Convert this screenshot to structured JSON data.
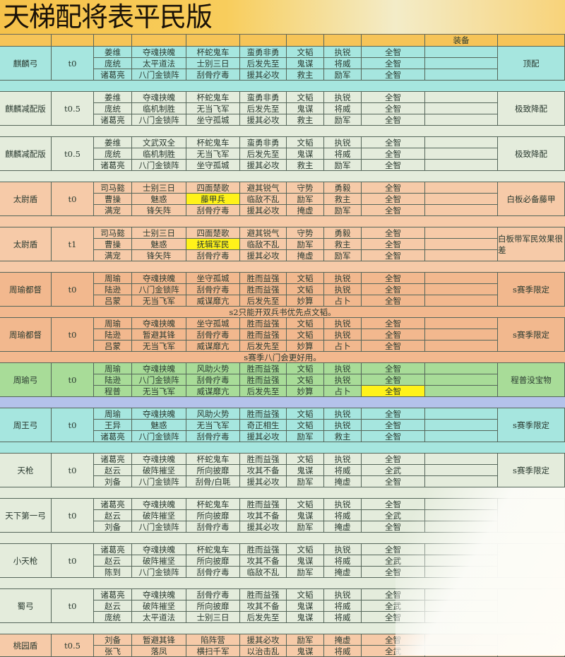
{
  "title": "天梯配将表平民版",
  "header": {
    "equipment": "装备"
  },
  "colors": {
    "cyan": "#a6e6df",
    "light": "#e4ecdc",
    "peach": "#f6caa8",
    "orange": "#f2b88e",
    "green": "#a8dc98",
    "blue": "#b4c2ea",
    "highlight": "#fff21a"
  },
  "groups": [
    {
      "name": "麒麟弓",
      "tier": "t0",
      "color": "cyan",
      "note": "顶配",
      "after": "",
      "rows": [
        [
          "姜维",
          "夺魂挟魄",
          "杯蛇鬼车",
          "蛮勇非勇",
          "文韬",
          "执锐",
          "全智"
        ],
        [
          "庞统",
          "太平道法",
          "士别三日",
          "后发先至",
          "鬼谋",
          "将威",
          "全智"
        ],
        [
          "诸葛亮",
          "八门金锁阵",
          "刮骨疗毒",
          "援其必攻",
          "救主",
          "励军",
          "全智"
        ]
      ]
    },
    {
      "name": "麒麟减配版",
      "tier": "t0.5",
      "color": "light",
      "note": "极致降配",
      "after": "",
      "rows": [
        [
          "姜维",
          "夺魂挟魄",
          "杯蛇鬼车",
          "蛮勇非勇",
          "文韬",
          "执锐",
          "全智"
        ],
        [
          "庞统",
          "临机制胜",
          "无当飞军",
          "后发先至",
          "鬼谋",
          "将威",
          "全智"
        ],
        [
          "诸葛亮",
          "八门金锁阵",
          "坐守孤城",
          "援其必攻",
          "救主",
          "励军",
          "全智"
        ]
      ]
    },
    {
      "name": "麒麟减配版",
      "tier": "t0.5",
      "color": "light",
      "note": "极致降配",
      "after": "",
      "rows": [
        [
          "姜维",
          "文武双全",
          "杯蛇鬼车",
          "蛮勇非勇",
          "文韬",
          "执锐",
          "全智"
        ],
        [
          "庞统",
          "临机制胜",
          "无当飞军",
          "后发先至",
          "鬼谋",
          "将威",
          "全智"
        ],
        [
          "诸葛亮",
          "八门金锁阵",
          "坐守孤城",
          "援其必攻",
          "救主",
          "励军",
          "全智"
        ]
      ]
    },
    {
      "name": "太尉盾",
      "tier": "t0",
      "color": "peach",
      "note": "白板必备藤甲",
      "after": "",
      "highlight": [
        1,
        2
      ],
      "rows": [
        [
          "司马懿",
          "士别三日",
          "四面楚歌",
          "避其锐气",
          "守势",
          "勇毅",
          "全智"
        ],
        [
          "曹操",
          "魅惑",
          "藤甲兵",
          "临敌不乱",
          "励军",
          "救主",
          "全智"
        ],
        [
          "满宠",
          "锋矢阵",
          "刮骨疗毒",
          "援其必攻",
          "掩虚",
          "励军",
          "全智"
        ]
      ]
    },
    {
      "name": "太尉盾",
      "tier": "t1",
      "color": "peach",
      "note": "白板带军民效果很差",
      "after": "",
      "highlight": [
        1,
        2
      ],
      "rows": [
        [
          "司马懿",
          "士别三日",
          "四面楚歌",
          "避其锐气",
          "守势",
          "勇毅",
          "全智"
        ],
        [
          "曹操",
          "魅惑",
          "抚辑军民",
          "临敌不乱",
          "励军",
          "救主",
          "全智"
        ],
        [
          "满宠",
          "锋矢阵",
          "刮骨疗毒",
          "援其必攻",
          "掩虚",
          "励军",
          "全智"
        ]
      ]
    },
    {
      "name": "周瑜都督",
      "tier": "t0",
      "color": "orange",
      "note": "s赛季限定",
      "after": "s2只能开双兵书优先点文韬。",
      "rows": [
        [
          "周瑜",
          "夺魂挟魄",
          "坐守孤城",
          "胜而益强",
          "文韬",
          "执锐",
          "全智"
        ],
        [
          "陆逊",
          "八门金锁阵",
          "刮骨疗毒",
          "胜而益强",
          "文韬",
          "执锐",
          "全智"
        ],
        [
          "吕蒙",
          "无当飞军",
          "威谋靡亢",
          "后发先至",
          "妙算",
          "占卜",
          "全智"
        ]
      ]
    },
    {
      "name": "周瑜都督",
      "tier": "t0",
      "color": "orange",
      "note": "s赛季限定",
      "after": "s赛季八门会更好用。",
      "rows": [
        [
          "周瑜",
          "夺魂挟魄",
          "坐守孤城",
          "胜而益强",
          "文韬",
          "执锐",
          "全智"
        ],
        [
          "陆逊",
          "暂避其锋",
          "刮骨疗毒",
          "胜而益强",
          "文韬",
          "执锐",
          "全智"
        ],
        [
          "吕蒙",
          "无当飞军",
          "威谋靡亢",
          "后发先至",
          "妙算",
          "占卜",
          "全智"
        ]
      ]
    },
    {
      "name": "周瑜弓",
      "tier": "t0",
      "color": "green",
      "note": "程普没宝物",
      "after": "",
      "sepColor": "blue",
      "highlight": [
        2,
        6
      ],
      "rows": [
        [
          "周瑜",
          "夺魂挟魄",
          "风助火势",
          "胜而益强",
          "文韬",
          "执锐",
          "全智"
        ],
        [
          "陆逊",
          "八门金锁阵",
          "刮骨疗毒",
          "胜而益强",
          "文韬",
          "执锐",
          "全智"
        ],
        [
          "程普",
          "无当飞军",
          "威谋靡亢",
          "后发先至",
          "妙算",
          "占卜",
          "全智"
        ]
      ]
    },
    {
      "name": "周王弓",
      "tier": "t0",
      "color": "cyan",
      "note": "s赛季限定",
      "after": "",
      "rows": [
        [
          "周瑜",
          "夺魂挟魄",
          "风助火势",
          "胜而益强",
          "文韬",
          "执锐",
          "全智"
        ],
        [
          "王异",
          "魅惑",
          "无当飞军",
          "奇正相生",
          "文韬",
          "执锐",
          "全智"
        ],
        [
          "诸葛亮",
          "八门金锁阵",
          "刮骨疗毒",
          "援其必攻",
          "励军",
          "救主",
          "全智"
        ]
      ]
    },
    {
      "name": "天枪",
      "tier": "t0",
      "color": "light",
      "note": "s赛季限定",
      "after": "",
      "rows": [
        [
          "诸葛亮",
          "夺魂挟魄",
          "杯蛇鬼车",
          "胜而益强",
          "文韬",
          "执锐",
          "全智"
        ],
        [
          "赵云",
          "破阵摧坚",
          "所向披靡",
          "攻其不备",
          "鬼谋",
          "将威",
          "全武"
        ],
        [
          "刘备",
          "八门金锁阵",
          "刮骨/白毦",
          "援其必攻",
          "励军",
          "掩虚",
          "全智"
        ]
      ]
    },
    {
      "name": "天下第一弓",
      "tier": "t0",
      "color": "light",
      "note": "",
      "after": "",
      "rows": [
        [
          "诸葛亮",
          "夺魂挟魄",
          "杯蛇鬼车",
          "胜而益强",
          "文韬",
          "执锐",
          "全智"
        ],
        [
          "赵云",
          "破阵摧坚",
          "所向披靡",
          "攻其不备",
          "鬼谋",
          "将威",
          "全武"
        ],
        [
          "刘备",
          "八门金锁阵",
          "刮骨疗毒",
          "援其必攻",
          "励军",
          "掩虚",
          "全智"
        ]
      ]
    },
    {
      "name": "小天枪",
      "tier": "t0",
      "color": "light",
      "note": "",
      "after": "",
      "rows": [
        [
          "诸葛亮",
          "夺魂挟魄",
          "杯蛇鬼车",
          "胜而益强",
          "文韬",
          "执锐",
          "全智"
        ],
        [
          "赵云",
          "破阵摧坚",
          "所向披靡",
          "攻其不备",
          "鬼谋",
          "将威",
          "全武"
        ],
        [
          "陈到",
          "八门金锁阵",
          "刮骨疗毒",
          "临敌不乱",
          "励军",
          "掩虚",
          "全智"
        ]
      ]
    },
    {
      "name": "蜀弓",
      "tier": "t0",
      "color": "light",
      "note": "",
      "after": "",
      "rows": [
        [
          "诸葛亮",
          "夺魂挟魄",
          "刮骨疗毒",
          "胜而益强",
          "文韬",
          "执锐",
          "全智"
        ],
        [
          "赵云",
          "破阵摧坚",
          "所向披靡",
          "攻其不备",
          "鬼谋",
          "将威",
          "全武"
        ],
        [
          "庞统",
          "太平道法",
          "士别三日",
          "后发先至",
          "鬼谋",
          "将威",
          "全智"
        ]
      ]
    },
    {
      "name": "桃园盾",
      "tier": "t0.5",
      "color": "peach",
      "note": "",
      "after": "",
      "rows": [
        [
          "刘备",
          "暂避其锋",
          "陷阵营",
          "援其必攻",
          "励军",
          "掩虚",
          "全智"
        ],
        [
          "张飞",
          "落凤",
          "横扫千军",
          "以治击乱",
          "鬼谋",
          "将威",
          "全武"
        ]
      ]
    }
  ]
}
